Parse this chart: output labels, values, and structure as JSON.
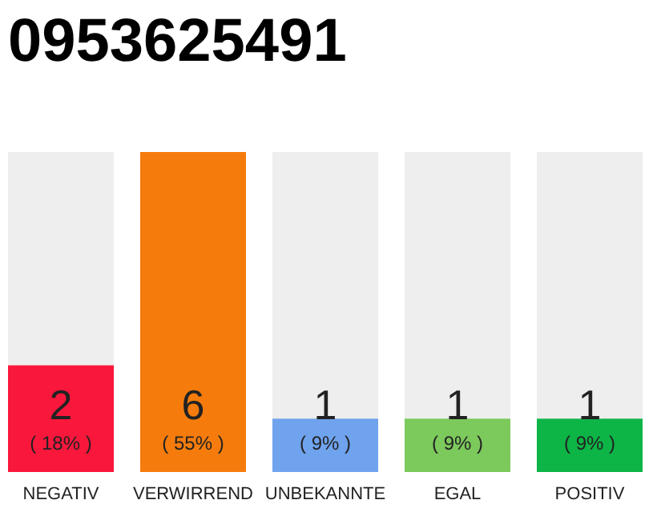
{
  "chart_data": {
    "type": "bar",
    "title": "0953625491",
    "categories": [
      "NEGATIV",
      "VERWIRREND",
      "UNBEKANNTE",
      "EGAL",
      "POSITIV"
    ],
    "values": [
      2,
      6,
      1,
      1,
      1
    ],
    "colors": [
      "#fa173c",
      "#f57c0c",
      "#6fa3ee",
      "#7cc95c",
      "#0db446"
    ],
    "value_labels": [
      "2\n( 18% )",
      "6\n( 55% )",
      "1\n( 9% )",
      "1\n( 9% )",
      "1\n( 9% )"
    ],
    "ylim": [
      0,
      6
    ],
    "tick_labels": "x"
  }
}
